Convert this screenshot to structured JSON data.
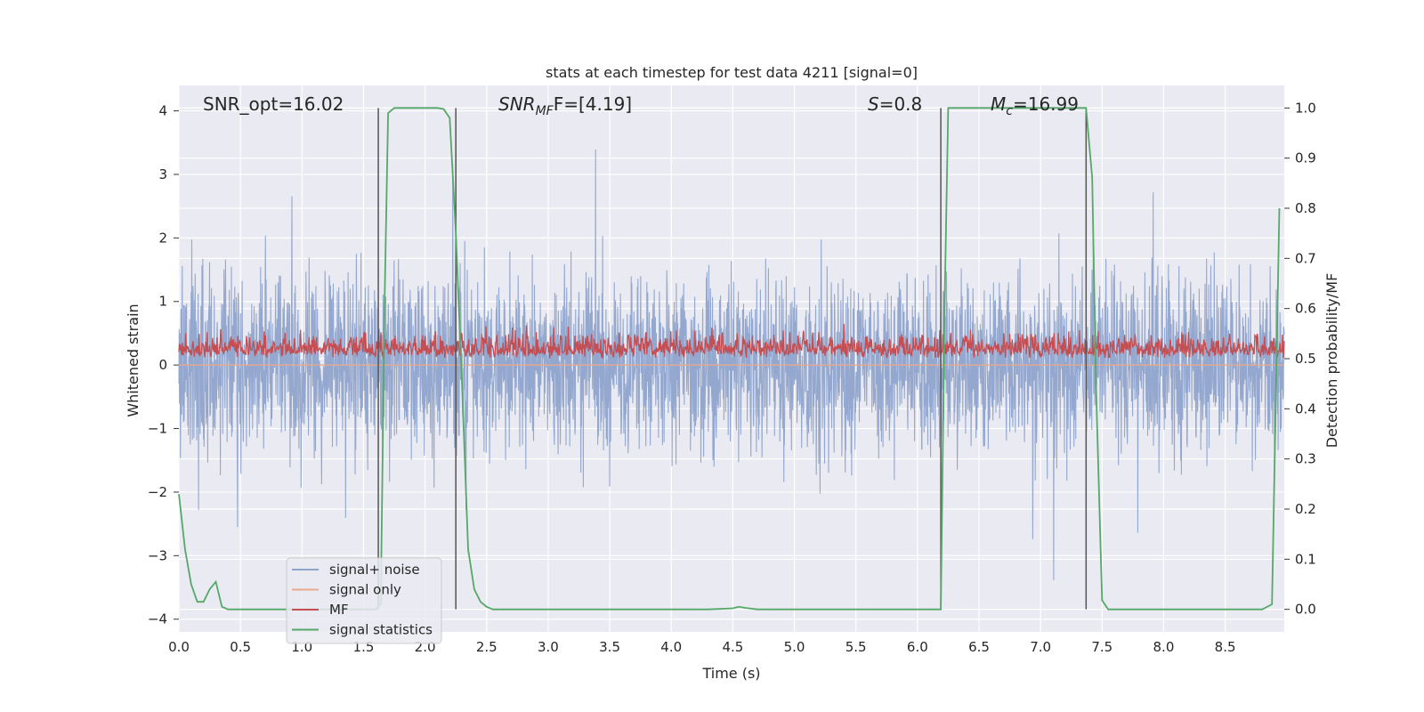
{
  "chart_data": {
    "type": "line",
    "title": "stats at each timestep for test data 4211 [signal=0]",
    "xlabel": "Time (s)",
    "ylabel_left": "Whitened strain",
    "ylabel_right": "Detection probability/MF",
    "xlim": [
      0.0,
      8.98
    ],
    "ylim_left": [
      -4.2,
      4.4
    ],
    "ylim_right": [
      -0.045,
      1.045
    ],
    "x_ticks": [
      "0.0",
      "0.5",
      "1.0",
      "1.5",
      "2.0",
      "2.5",
      "3.0",
      "3.5",
      "4.0",
      "4.5",
      "5.0",
      "5.5",
      "6.0",
      "6.5",
      "7.0",
      "7.5",
      "8.0",
      "8.5"
    ],
    "y_ticks_left": [
      "4",
      "3",
      "2",
      "1",
      "0",
      "−1",
      "−2",
      "−3",
      "−4"
    ],
    "y_ticks_right": [
      "1.0",
      "0.9",
      "0.8",
      "0.7",
      "0.6",
      "0.5",
      "0.4",
      "0.3",
      "0.2",
      "0.1",
      "0.0"
    ],
    "grid": true,
    "annotations": {
      "snr_opt": "SNR_opt=16.02",
      "snr_mf_main": "SNR",
      "snr_mf_sub": "MF",
      "snr_mf_rest": "F=[4.19]",
      "s_var": "S",
      "s_rest": "=0.8",
      "mc_main": "M",
      "mc_sub": "c",
      "mc_rest": "=16.99"
    },
    "vertical_lines_time": [
      1.62,
      2.25,
      6.19,
      7.37
    ],
    "legend_position": "lower-left",
    "legend": [
      {
        "name": "signal+ noise",
        "color": "#8fa4cc"
      },
      {
        "name": "signal only",
        "color": "#e8a98c"
      },
      {
        "name": "MF",
        "color": "#c44e52"
      },
      {
        "name": "signal statistics",
        "color": "#55a868"
      }
    ],
    "series": [
      {
        "name": "signal+ noise",
        "axis": "left",
        "description": "dense noise trace, whitened strain mostly within about ±1.7 with spikes to about ±4",
        "approx_range": [
          -3.7,
          4.0
        ]
      },
      {
        "name": "signal only",
        "axis": "left",
        "description": "zero signal (signal=0)",
        "values_constant": 0
      },
      {
        "name": "MF",
        "axis": "right",
        "description": "matched filter output fluctuating between about 0.50 and 0.60",
        "approx_range": [
          0.5,
          0.6
        ]
      },
      {
        "name": "signal statistics",
        "axis": "right",
        "x": [
          0.0,
          0.05,
          0.1,
          0.15,
          0.2,
          0.25,
          0.3,
          0.35,
          0.4,
          0.45,
          0.5,
          0.6,
          0.7,
          0.8,
          0.9,
          1.0,
          1.1,
          1.2,
          1.3,
          1.4,
          1.5,
          1.6,
          1.64,
          1.67,
          1.7,
          1.75,
          1.8,
          1.9,
          2.0,
          2.1,
          2.15,
          2.2,
          2.25,
          2.3,
          2.35,
          2.4,
          2.45,
          2.5,
          2.55,
          2.6,
          2.7,
          3.0,
          3.5,
          4.0,
          4.3,
          4.5,
          4.55,
          4.6,
          4.7,
          5.0,
          5.5,
          6.0,
          6.1,
          6.15,
          6.19,
          6.22,
          6.25,
          6.3,
          6.5,
          7.0,
          7.3,
          7.37,
          7.42,
          7.45,
          7.5,
          7.55,
          7.6,
          8.0,
          8.5,
          8.8,
          8.88,
          8.91,
          8.94
        ],
        "y": [
          0.23,
          0.12,
          0.05,
          0.015,
          0.015,
          0.04,
          0.055,
          0.005,
          0.0,
          0.0,
          0.0,
          0.0,
          0.0,
          0.0,
          0.0,
          0.0,
          0.0,
          0.0,
          0.0,
          0.0,
          0.0,
          0.0,
          0.01,
          0.6,
          0.99,
          1.0,
          1.0,
          1.0,
          1.0,
          1.0,
          0.998,
          0.98,
          0.75,
          0.45,
          0.12,
          0.04,
          0.015,
          0.005,
          0.0,
          0.0,
          0.0,
          0.0,
          0.0,
          0.0,
          0.0,
          0.002,
          0.005,
          0.003,
          0.0,
          0.0,
          0.0,
          0.0,
          0.0,
          0.0,
          0.0,
          0.6,
          1.0,
          1.0,
          1.0,
          1.0,
          1.0,
          1.0,
          0.86,
          0.45,
          0.018,
          0.0,
          0.0,
          0.0,
          0.0,
          0.0,
          0.01,
          0.4,
          0.8
        ]
      }
    ]
  }
}
